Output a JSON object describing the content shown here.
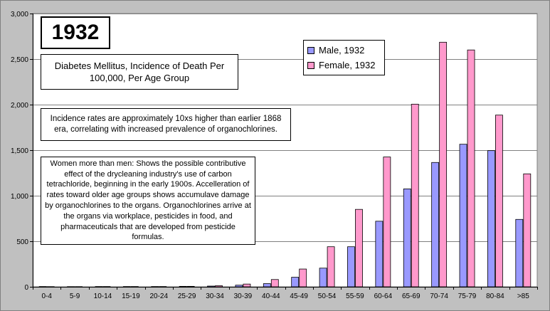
{
  "chart_data": {
    "type": "bar",
    "categories": [
      "0-4",
      "5-9",
      "10-14",
      "15-19",
      "20-24",
      "25-29",
      "30-34",
      "30-39",
      "40-44",
      "45-49",
      "50-54",
      "55-59",
      "60-64",
      "65-69",
      "70-74",
      "75-79",
      "80-84",
      ">85"
    ],
    "series": [
      {
        "name": "Male, 1932",
        "color": "#9999ff",
        "values": [
          3,
          2,
          3,
          3,
          3,
          5,
          8,
          18,
          35,
          105,
          205,
          440,
          720,
          1075,
          1365,
          1565,
          1495,
          740
        ]
      },
      {
        "name": "Female, 1932",
        "color": "#ff99cc",
        "values": [
          2,
          2,
          3,
          3,
          3,
          5,
          12,
          30,
          80,
          195,
          440,
          850,
          1425,
          2005,
          2685,
          2600,
          1885,
          1240
        ]
      }
    ],
    "yticks": [
      0,
      500,
      1000,
      1500,
      2000,
      2500,
      3000
    ],
    "ytick_labels": [
      "0",
      "500",
      "1,000",
      "1,500",
      "2,000",
      "2,500",
      "3,000"
    ],
    "ylim": [
      0,
      3000
    ],
    "grid": true,
    "legend_position": "top-center",
    "plot_background": "#ffffff"
  },
  "annotations": {
    "year": "1932",
    "title": "Diabetes Mellitus, Incidence of Death Per 100,000, Per Age Group",
    "note1": "Incidence rates are approximately 10xs higher than earlier 1868 era, correlating with increased prevalence of organochlorines.",
    "note2": "Women more than men:  Shows the possible contributive effect of the drycleaning industry's use of carbon tetrachloride, beginning in the early 1900s.  Accelleration of rates toward older age groups shows accumulave damage by organochlorines to the organs. Organochlorines arrive at the organs via workplace, pesticides in food, and pharmaceuticals that are developed from pesticide formulas."
  }
}
